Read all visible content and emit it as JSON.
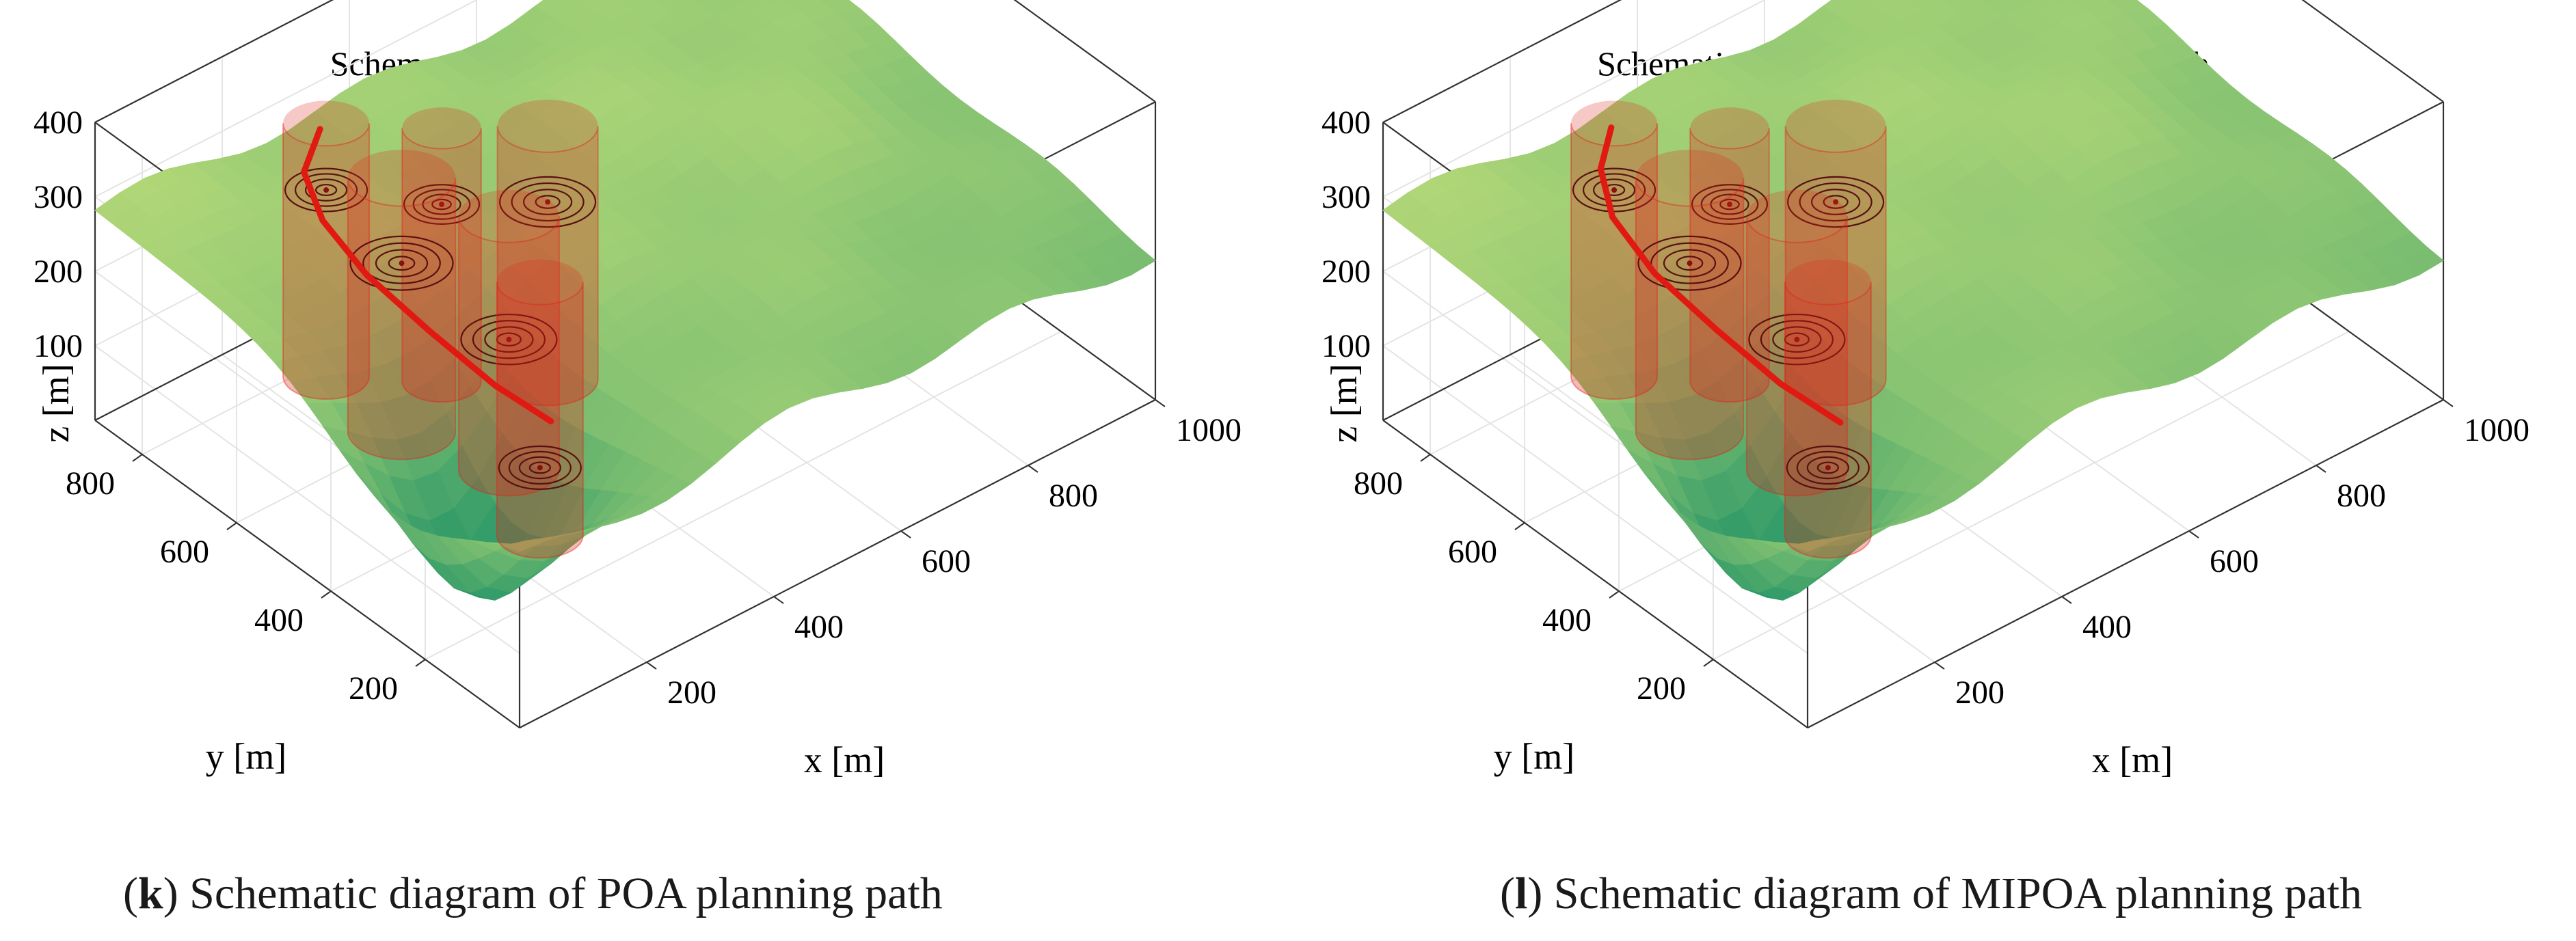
{
  "colors": {
    "terrain_low": "#2f9a68",
    "terrain_high": "#c9e27a",
    "obstacle": "#e0261c",
    "path": "#e01a12",
    "grid": "#e4e4e4",
    "axis": "#333333"
  },
  "chart_data": [
    {
      "type": "surface3d",
      "title": "Schematic diagram of POA planning path",
      "xlabel": "x [m]",
      "ylabel": "y [m]",
      "zlabel": "z [m]",
      "xlim": [
        0,
        1000
      ],
      "ylim": [
        0,
        900
      ],
      "zlim": [
        0,
        400
      ],
      "x_ticks": [
        "200",
        "400",
        "600",
        "800",
        "1000"
      ],
      "y_ticks": [
        "200",
        "400",
        "600",
        "800"
      ],
      "z_ticks": [
        "100",
        "200",
        "300",
        "400"
      ],
      "series": [
        {
          "kind": "path",
          "points": [
            [
              205,
              210,
              225
            ],
            [
              185,
              300,
              240
            ],
            [
              170,
              420,
              265
            ],
            [
              160,
              540,
              290
            ],
            [
              165,
              640,
              315
            ],
            [
              195,
              720,
              330
            ],
            [
              250,
              760,
              345
            ]
          ]
        }
      ],
      "obstacles": [
        {
          "x": 230,
          "y": 720,
          "radius": 60
        },
        {
          "x": 330,
          "y": 610,
          "radius": 55
        },
        {
          "x": 230,
          "y": 560,
          "radius": 75
        },
        {
          "x": 280,
          "y": 400,
          "radius": 70
        },
        {
          "x": 430,
          "y": 520,
          "radius": 70
        },
        {
          "x": 225,
          "y": 260,
          "radius": 60
        }
      ]
    },
    {
      "type": "surface3d",
      "title": "Schematic diagram of MIPOA planning path",
      "xlabel": "x [m]",
      "ylabel": "y [m]",
      "zlabel": "z [m]",
      "xlim": [
        0,
        1000
      ],
      "ylim": [
        0,
        900
      ],
      "zlim": [
        0,
        400
      ],
      "x_ticks": [
        "200",
        "400",
        "600",
        "800",
        "1000"
      ],
      "y_ticks": [
        "200",
        "400",
        "600",
        "800"
      ],
      "z_ticks": [
        "100",
        "200",
        "300",
        "400"
      ],
      "series": [
        {
          "kind": "path",
          "points": [
            [
              200,
              200,
              230
            ],
            [
              180,
              300,
              245
            ],
            [
              168,
              420,
              268
            ],
            [
              160,
              540,
              292
            ],
            [
              168,
              640,
              318
            ],
            [
              205,
              715,
              332
            ],
            [
              255,
              760,
              345
            ]
          ]
        }
      ],
      "obstacles": [
        {
          "x": 230,
          "y": 720,
          "radius": 60
        },
        {
          "x": 330,
          "y": 610,
          "radius": 55
        },
        {
          "x": 230,
          "y": 560,
          "radius": 75
        },
        {
          "x": 280,
          "y": 400,
          "radius": 70
        },
        {
          "x": 430,
          "y": 520,
          "radius": 70
        },
        {
          "x": 225,
          "y": 260,
          "radius": 60
        }
      ]
    }
  ],
  "captions": [
    {
      "letter": "k",
      "text": ") Schematic diagram of POA planning path"
    },
    {
      "letter": "l",
      "text": ") Schematic diagram of MIPOA planning path"
    }
  ]
}
